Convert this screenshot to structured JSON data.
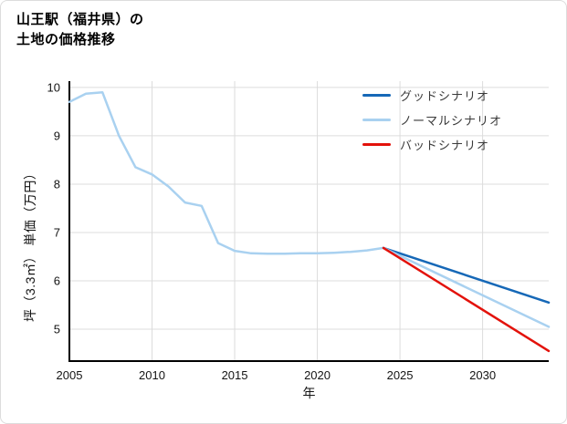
{
  "page": {
    "title_lines": [
      "山王駅（福井県）の",
      "土地の価格推移"
    ]
  },
  "chart_data": {
    "type": "line",
    "title": "山王駅（福井県）の土地の価格推移",
    "xlabel": "年",
    "ylabel": "坪（3.3㎡） 単価（万円）",
    "xlim": [
      2005,
      2034
    ],
    "ylim": [
      4.34,
      10.13
    ],
    "xticks": [
      2005,
      2010,
      2015,
      2020,
      2025,
      2030
    ],
    "yticks": [
      5,
      6,
      7,
      8,
      9,
      10
    ],
    "grid": true,
    "grid_color": "#dcdcdc",
    "axis_color": "#000000",
    "legend_position": "upper right",
    "series": [
      {
        "key": "historical",
        "legend": null,
        "color": "#a9d1f0",
        "x": [
          2005,
          2006,
          2007,
          2008,
          2009,
          2010,
          2011,
          2012,
          2013,
          2014,
          2015,
          2016,
          2017,
          2018,
          2019,
          2020,
          2021,
          2022,
          2023,
          2024
        ],
        "y": [
          9.7,
          9.87,
          9.9,
          9.0,
          8.35,
          8.2,
          7.95,
          7.62,
          7.55,
          6.78,
          6.62,
          6.57,
          6.56,
          6.56,
          6.57,
          6.57,
          6.58,
          6.6,
          6.63,
          6.68
        ]
      },
      {
        "key": "good-scenario",
        "legend": "グッドシナリオ",
        "color": "#1668b7",
        "x": [
          2024,
          2034
        ],
        "y": [
          6.68,
          5.55
        ]
      },
      {
        "key": "normal-scenario",
        "legend": "ノーマルシナリオ",
        "color": "#a9d1f0",
        "x": [
          2024,
          2034
        ],
        "y": [
          6.68,
          5.05
        ]
      },
      {
        "key": "bad-scenario",
        "legend": "バッドシナリオ",
        "color": "#e3120b",
        "x": [
          2024,
          2034
        ],
        "y": [
          6.68,
          4.55
        ]
      }
    ]
  }
}
